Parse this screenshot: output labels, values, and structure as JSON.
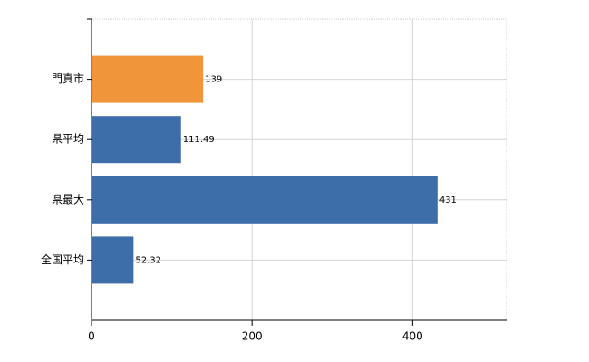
{
  "chart_data": {
    "type": "hbar",
    "categories": [
      "門真市",
      "県平均",
      "県最大",
      "全国平均"
    ],
    "values": [
      139,
      111.49,
      431,
      52.32
    ],
    "colors": [
      "#f0953a",
      "#3d6eaa",
      "#3d6eaa",
      "#3d6eaa"
    ],
    "xlim": [
      0,
      517
    ],
    "xticks": [
      0,
      200,
      400
    ],
    "grid": true
  }
}
